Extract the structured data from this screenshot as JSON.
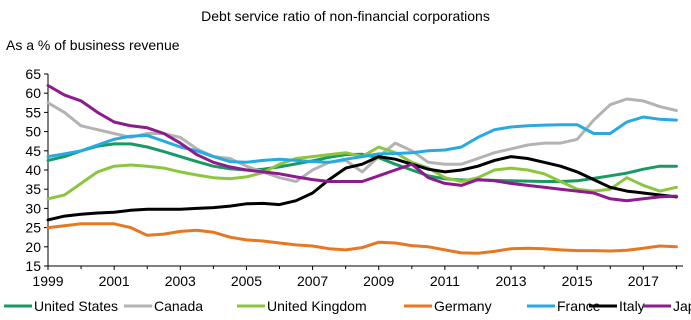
{
  "chart_data": {
    "type": "line",
    "title": "Debt service ratio of non-financial corporations",
    "ylabel": "As a % of business revenue",
    "xlim": [
      1999,
      2018.2
    ],
    "ylim": [
      15,
      65
    ],
    "y_ticks": [
      15,
      20,
      25,
      30,
      35,
      40,
      45,
      50,
      55,
      60,
      65
    ],
    "x_ticks": [
      1999,
      2001,
      2003,
      2005,
      2007,
      2009,
      2011,
      2013,
      2015,
      2017
    ],
    "grid": false,
    "legend": "bottom",
    "series": [
      {
        "name": "United States",
        "color": "#1a9a63",
        "x": [
          1999,
          1999.5,
          2000,
          2000.5,
          2001,
          2001.5,
          2002,
          2002.5,
          2003,
          2003.5,
          2004,
          2004.5,
          2005,
          2005.5,
          2006,
          2006.5,
          2007,
          2007.5,
          2008,
          2008.5,
          2009,
          2009.5,
          2010,
          2010.5,
          2011,
          2011.5,
          2012,
          2012.5,
          2013,
          2013.5,
          2014,
          2014.5,
          2015,
          2015.5,
          2016,
          2016.5,
          2017,
          2017.5,
          2018
        ],
        "y": [
          42.5,
          43.5,
          45,
          46.2,
          46.8,
          46.8,
          46,
          44.8,
          43.5,
          42.2,
          41,
          40.3,
          40,
          40.2,
          40.8,
          41.6,
          42.4,
          43.3,
          44,
          44.1,
          43.2,
          41.5,
          40,
          38.5,
          37.7,
          37.4,
          37.4,
          37.3,
          37.2,
          37.1,
          37,
          37,
          37.2,
          37.8,
          38.5,
          39.2,
          40.2,
          41,
          41
        ]
      },
      {
        "name": "Canada",
        "color": "#b3b3b3",
        "x": [
          1999,
          1999.5,
          2000,
          2000.5,
          2001,
          2001.5,
          2002,
          2002.5,
          2003,
          2003.5,
          2004,
          2004.5,
          2005,
          2005.5,
          2006,
          2006.5,
          2007,
          2007.5,
          2008,
          2008.5,
          2009,
          2009.5,
          2010,
          2010.5,
          2011,
          2011.5,
          2012,
          2012.5,
          2013,
          2013.5,
          2014,
          2014.5,
          2015,
          2015.5,
          2016,
          2016.5,
          2017,
          2017.5,
          2018
        ],
        "y": [
          57.5,
          55,
          51.5,
          50.5,
          49.5,
          48.5,
          49.5,
          49.5,
          48.5,
          45.5,
          43.5,
          43,
          41,
          39.5,
          38,
          37,
          40,
          42,
          42.5,
          39.5,
          43.5,
          47,
          45,
          42,
          41.5,
          41.5,
          43,
          44.5,
          45.5,
          46.5,
          47,
          47,
          48,
          53,
          57,
          58.5,
          58,
          56.5,
          55.5
        ]
      },
      {
        "name": "United Kingdom",
        "color": "#8cc63f",
        "x": [
          1999,
          1999.5,
          2000,
          2000.5,
          2001,
          2001.5,
          2002,
          2002.5,
          2003,
          2003.5,
          2004,
          2004.5,
          2005,
          2005.5,
          2006,
          2006.5,
          2007,
          2007.5,
          2008,
          2008.5,
          2009,
          2009.5,
          2010,
          2010.5,
          2011,
          2011.5,
          2012,
          2012.5,
          2013,
          2013.5,
          2014,
          2014.5,
          2015,
          2015.5,
          2016,
          2016.5,
          2017,
          2017.5,
          2018
        ],
        "y": [
          32.5,
          33.5,
          36.5,
          39.5,
          41,
          41.3,
          41,
          40.5,
          39.5,
          38.7,
          38,
          37.7,
          38.2,
          39.3,
          41.5,
          43,
          43.5,
          44,
          44.5,
          43.5,
          46,
          44.5,
          42,
          40.5,
          38,
          37,
          38,
          40,
          40.5,
          40,
          39,
          37,
          35,
          34.5,
          35,
          38,
          36,
          34.5,
          35.5
        ]
      },
      {
        "name": "Germany",
        "color": "#e87722",
        "x": [
          1999,
          1999.5,
          2000,
          2000.5,
          2001,
          2001.5,
          2002,
          2002.5,
          2003,
          2003.5,
          2004,
          2004.5,
          2005,
          2005.5,
          2006,
          2006.5,
          2007,
          2007.5,
          2008,
          2008.5,
          2009,
          2009.5,
          2010,
          2010.5,
          2011,
          2011.5,
          2012,
          2012.5,
          2013,
          2013.5,
          2014,
          2014.5,
          2015,
          2015.5,
          2016,
          2016.5,
          2017,
          2017.5,
          2018
        ],
        "y": [
          25,
          25.5,
          26,
          26,
          26,
          25,
          23,
          23.3,
          24,
          24.3,
          23.8,
          22.5,
          21.8,
          21.5,
          21,
          20.5,
          20.2,
          19.5,
          19.2,
          19.8,
          21.2,
          21,
          20.3,
          20,
          19.2,
          18.4,
          18.3,
          18.8,
          19.5,
          19.6,
          19.5,
          19.2,
          19,
          19,
          18.9,
          19.1,
          19.6,
          20.2,
          20
        ]
      },
      {
        "name": "France",
        "color": "#27aae1",
        "x": [
          1999,
          1999.5,
          2000,
          2000.5,
          2001,
          2001.5,
          2002,
          2002.5,
          2003,
          2003.5,
          2004,
          2004.5,
          2005,
          2005.5,
          2006,
          2006.5,
          2007,
          2007.5,
          2008,
          2008.5,
          2009,
          2009.5,
          2010,
          2010.5,
          2011,
          2011.5,
          2012,
          2012.5,
          2013,
          2013.5,
          2014,
          2014.5,
          2015,
          2015.5,
          2016,
          2016.5,
          2017,
          2017.5,
          2018
        ],
        "y": [
          43.5,
          44.2,
          45,
          46.5,
          48,
          48.8,
          49,
          47.5,
          46,
          45,
          43.5,
          42.2,
          42,
          42.5,
          42.8,
          42.5,
          42.2,
          42,
          42.8,
          43.5,
          44.2,
          44.3,
          44.5,
          45,
          45.2,
          46,
          48.5,
          50.5,
          51.2,
          51.5,
          51.7,
          51.8,
          51.8,
          49.5,
          49.5,
          52.5,
          53.8,
          53.2,
          53
        ]
      },
      {
        "name": "Italy",
        "color": "#000000",
        "x": [
          1999,
          1999.5,
          2000,
          2000.5,
          2001,
          2001.5,
          2002,
          2002.5,
          2003,
          2003.5,
          2004,
          2004.5,
          2005,
          2005.5,
          2006,
          2006.5,
          2007,
          2007.5,
          2008,
          2008.5,
          2009,
          2009.5,
          2010,
          2010.5,
          2011,
          2011.5,
          2012,
          2012.5,
          2013,
          2013.5,
          2014,
          2014.5,
          2015,
          2015.5,
          2016,
          2016.5,
          2017,
          2017.5,
          2018
        ],
        "y": [
          27,
          28,
          28.5,
          28.8,
          29,
          29.5,
          29.8,
          29.8,
          29.8,
          30,
          30.2,
          30.6,
          31.2,
          31.3,
          31,
          32,
          34,
          37.5,
          40.5,
          41.5,
          43.5,
          42.8,
          41.5,
          40.2,
          39.5,
          40,
          41,
          42.5,
          43.5,
          43,
          42,
          41,
          39.5,
          37.5,
          35.5,
          34.5,
          34,
          33.5,
          33
        ]
      },
      {
        "name": "Japan",
        "color": "#8e1b8e",
        "x": [
          1999,
          1999.5,
          2000,
          2000.5,
          2001,
          2001.5,
          2002,
          2002.5,
          2003,
          2003.5,
          2004,
          2004.5,
          2005,
          2005.5,
          2006,
          2006.5,
          2007,
          2007.5,
          2008,
          2008.5,
          2009,
          2009.5,
          2010,
          2010.5,
          2011,
          2011.5,
          2012,
          2012.5,
          2013,
          2013.5,
          2014,
          2014.5,
          2015,
          2015.5,
          2016,
          2016.5,
          2017,
          2017.5,
          2018
        ],
        "y": [
          62,
          59.5,
          58,
          55,
          52.5,
          51.5,
          51,
          49.5,
          47,
          44,
          42,
          40.8,
          40,
          39.5,
          39,
          38.2,
          37.5,
          37,
          37,
          37,
          38.5,
          40,
          41.5,
          38,
          36.5,
          36,
          37.5,
          37.2,
          36.5,
          36,
          35.5,
          35,
          34.5,
          34,
          32.5,
          32,
          32.5,
          33,
          33.2
        ]
      }
    ]
  }
}
